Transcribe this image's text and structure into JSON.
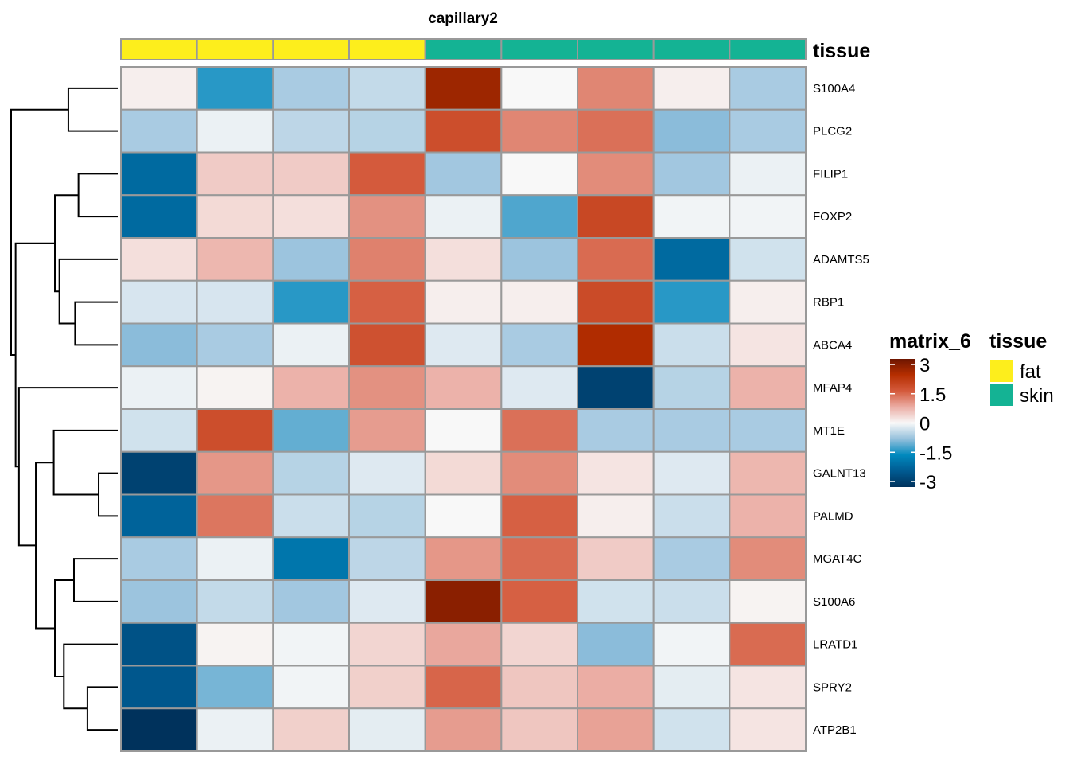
{
  "chart_data": {
    "type": "heatmap",
    "title": "capillary2",
    "rows": [
      "S100A4",
      "PLCG2",
      "FILIP1",
      "FOXP2",
      "ADAMTS5",
      "RBP1",
      "ABCA4",
      "MFAP4",
      "MT1E",
      "GALNT13",
      "PALMD",
      "MGAT4C",
      "S100A6",
      "LRATD1",
      "SPRY2",
      "ATP2B1"
    ],
    "columns_count": 9,
    "column_annotation": {
      "name": "tissue",
      "values": [
        "fat",
        "fat",
        "fat",
        "fat",
        "skin",
        "skin",
        "skin",
        "skin",
        "skin"
      ],
      "levels": [
        {
          "label": "fat",
          "color": "#FDEE1C"
        },
        {
          "label": "skin",
          "color": "#14B394"
        }
      ]
    },
    "values": [
      [
        0.1,
        -1.3,
        -0.6,
        -0.4,
        2.5,
        0.0,
        1.1,
        0.1,
        -0.6
      ],
      [
        -0.6,
        -0.1,
        -0.45,
        -0.5,
        1.7,
        1.1,
        1.3,
        -0.8,
        -0.6
      ],
      [
        -2.0,
        0.45,
        0.45,
        1.5,
        -0.65,
        0.0,
        1.05,
        -0.65,
        -0.1
      ],
      [
        -2.0,
        0.3,
        0.25,
        1.0,
        -0.1,
        -1.1,
        1.8,
        -0.05,
        -0.05
      ],
      [
        0.25,
        0.65,
        -0.7,
        1.15,
        0.25,
        -0.7,
        1.35,
        -2.0,
        -0.3
      ],
      [
        -0.25,
        -0.25,
        -1.3,
        1.45,
        0.1,
        0.1,
        1.75,
        -1.3,
        0.1
      ],
      [
        -0.8,
        -0.6,
        -0.1,
        1.65,
        -0.2,
        -0.6,
        2.3,
        -0.35,
        0.2
      ],
      [
        -0.1,
        0.05,
        0.7,
        1.0,
        0.7,
        -0.2,
        -2.7,
        -0.5,
        0.7
      ],
      [
        -0.3,
        1.7,
        -1.0,
        0.9,
        0.0,
        1.3,
        -0.6,
        -0.6,
        -0.6
      ],
      [
        -2.7,
        0.95,
        -0.5,
        -0.2,
        0.3,
        1.05,
        0.2,
        -0.2,
        0.65
      ],
      [
        -2.1,
        1.25,
        -0.35,
        -0.5,
        0.0,
        1.45,
        0.1,
        -0.35,
        0.7
      ],
      [
        -0.6,
        -0.1,
        -1.8,
        -0.45,
        0.95,
        1.35,
        0.45,
        -0.6,
        1.05
      ],
      [
        -0.7,
        -0.4,
        -0.65,
        -0.2,
        2.7,
        1.45,
        -0.3,
        -0.35,
        0.05
      ],
      [
        -2.4,
        0.05,
        -0.05,
        0.35,
        0.8,
        0.35,
        -0.8,
        -0.05,
        1.35
      ],
      [
        -2.3,
        -0.9,
        -0.05,
        0.4,
        1.4,
        0.5,
        0.75,
        -0.15,
        0.2
      ],
      [
        -3.0,
        -0.1,
        0.4,
        -0.15,
        0.9,
        0.5,
        0.85,
        -0.3,
        0.2
      ]
    ],
    "color_scale": {
      "name": "matrix_6",
      "range": [
        -3,
        3
      ],
      "ticks": [
        "3",
        "1.5",
        "0",
        "-1.5",
        "-3"
      ],
      "tick_values": [
        3,
        1.5,
        0,
        -1.5,
        -3
      ],
      "stops": [
        {
          "value": -3,
          "color": "#00325C"
        },
        {
          "value": -2.25,
          "color": "#005A91"
        },
        {
          "value": -1.5,
          "color": "#0089BE"
        },
        {
          "value": -0.75,
          "color": "#95C0DC"
        },
        {
          "value": 0,
          "color": "#F8F8F8"
        },
        {
          "value": 0.75,
          "color": "#EBADA4"
        },
        {
          "value": 1.5,
          "color": "#D45A3C"
        },
        {
          "value": 2.25,
          "color": "#B52E00"
        },
        {
          "value": 3,
          "color": "#6E1500"
        }
      ]
    },
    "row_dendrogram": {
      "merges": [
        {
          "id": "n1",
          "children": [
            "S100A4",
            "PLCG2"
          ],
          "height": 0.44
        },
        {
          "id": "n2",
          "children": [
            "FILIP1",
            "FOXP2"
          ],
          "height": 0.35
        },
        {
          "id": "n3",
          "children": [
            "RBP1",
            "ABCA4"
          ],
          "height": 0.38
        },
        {
          "id": "n4",
          "children": [
            "ADAMTS5",
            "n3"
          ],
          "height": 0.52
        },
        {
          "id": "n5",
          "children": [
            "n2",
            "n4"
          ],
          "height": 0.56
        },
        {
          "id": "n6",
          "children": [
            "GALNT13",
            "PALMD"
          ],
          "height": 0.17
        },
        {
          "id": "n7",
          "children": [
            "MT1E",
            "n6"
          ],
          "height": 0.57
        },
        {
          "id": "n8",
          "children": [
            "MGAT4C",
            "S100A6"
          ],
          "height": 0.39
        },
        {
          "id": "n9",
          "children": [
            "SPRY2",
            "ATP2B1"
          ],
          "height": 0.27
        },
        {
          "id": "n10",
          "children": [
            "LRATD1",
            "n9"
          ],
          "height": 0.48
        },
        {
          "id": "n11",
          "children": [
            "n8",
            "n10"
          ],
          "height": 0.56
        },
        {
          "id": "n12",
          "children": [
            "n7",
            "n11"
          ],
          "height": 0.73
        },
        {
          "id": "n13",
          "children": [
            "MFAP4",
            "n12"
          ],
          "height": 0.88
        },
        {
          "id": "n14",
          "children": [
            "n5",
            "n13"
          ],
          "height": 0.91
        },
        {
          "id": "n15",
          "children": [
            "n1",
            "n14"
          ],
          "height": 0.95
        }
      ]
    },
    "legend_placement": "right"
  }
}
